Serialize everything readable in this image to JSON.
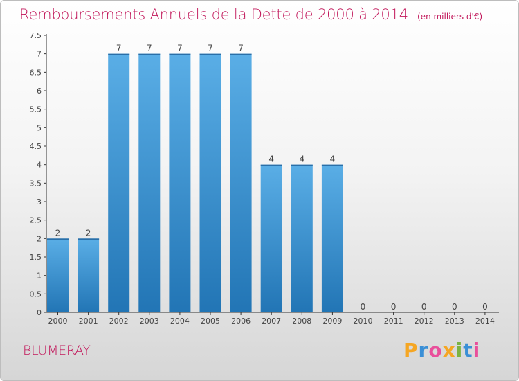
{
  "header": {
    "title": "Remboursements Annuels de la Dette de 2000 à 2014",
    "subtitle": "(en milliers d'€)"
  },
  "footer": {
    "commune": "BLUMERAY",
    "logo_text": "Proxiti"
  },
  "colors": {
    "title": "#c2185b",
    "bar_top": "#5aaee6",
    "bar_bottom": "#2275b5",
    "axis": "#333333"
  },
  "chart_data": {
    "type": "bar",
    "title": "Remboursements Annuels de la Dette de 2000 à 2014",
    "subtitle": "(en milliers d'€)",
    "categories": [
      "2000",
      "2001",
      "2002",
      "2003",
      "2004",
      "2005",
      "2006",
      "2007",
      "2008",
      "2009",
      "2010",
      "2011",
      "2012",
      "2013",
      "2014"
    ],
    "values": [
      2,
      2,
      7,
      7,
      7,
      7,
      7,
      4,
      4,
      4,
      0,
      0,
      0,
      0,
      0
    ],
    "y_ticks": [
      "0",
      "0.5",
      "1",
      "1.5",
      "2",
      "2.5",
      "3",
      "3.5",
      "4",
      "4.5",
      "5",
      "5.5",
      "6",
      "6.5",
      "7",
      "7.5"
    ],
    "ylim": [
      0,
      7.5
    ],
    "xlabel": "",
    "ylabel": "",
    "grid": false,
    "legend": "none"
  }
}
